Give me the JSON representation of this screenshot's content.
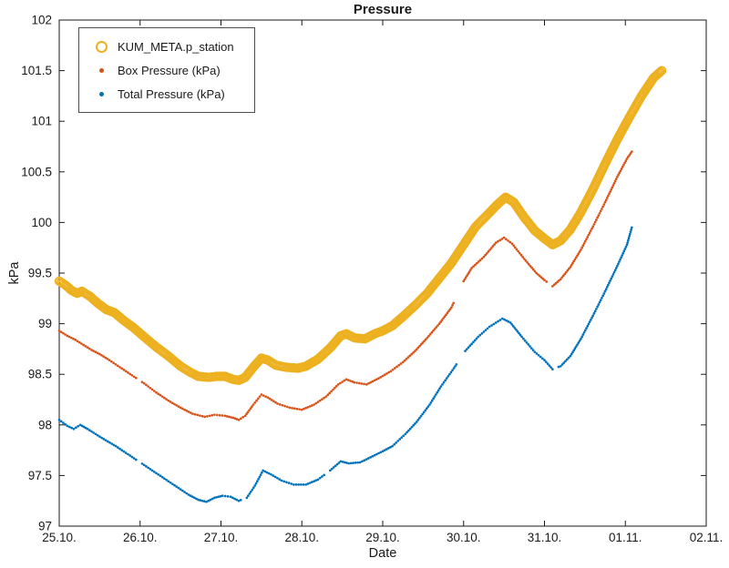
{
  "chart_data": {
    "type": "scatter",
    "title": "Pressure",
    "xlabel": "Date",
    "ylabel": "kPa",
    "grid": false,
    "legend_position": "top-left",
    "xlim": [
      0,
      8
    ],
    "ylim": [
      97,
      102
    ],
    "x_unit": "days since 25.10.",
    "x_ticks": [
      {
        "v": 0,
        "label": "25.10."
      },
      {
        "v": 1,
        "label": "26.10."
      },
      {
        "v": 2,
        "label": "27.10."
      },
      {
        "v": 3,
        "label": "28.10."
      },
      {
        "v": 4,
        "label": "29.10."
      },
      {
        "v": 5,
        "label": "30.10."
      },
      {
        "v": 6,
        "label": "31.10."
      },
      {
        "v": 7,
        "label": "01.11."
      },
      {
        "v": 8,
        "label": "02.11."
      }
    ],
    "y_ticks": [
      {
        "v": 97,
        "label": "97"
      },
      {
        "v": 97.5,
        "label": "97.5"
      },
      {
        "v": 98,
        "label": "98"
      },
      {
        "v": 98.5,
        "label": "98.5"
      },
      {
        "v": 99,
        "label": "99"
      },
      {
        "v": 99.5,
        "label": "99.5"
      },
      {
        "v": 100,
        "label": "100"
      },
      {
        "v": 100.5,
        "label": "100.5"
      },
      {
        "v": 101,
        "label": "101"
      },
      {
        "v": 101.5,
        "label": "101.5"
      },
      {
        "v": 102,
        "label": "102"
      }
    ],
    "series": [
      {
        "name": "KUM_META.p_station",
        "color": "#EDB120",
        "marker": "open-circle",
        "gaps": [],
        "points": [
          [
            0.0,
            99.42
          ],
          [
            0.08,
            99.38
          ],
          [
            0.15,
            99.33
          ],
          [
            0.22,
            99.3
          ],
          [
            0.28,
            99.32
          ],
          [
            0.38,
            99.27
          ],
          [
            0.48,
            99.2
          ],
          [
            0.58,
            99.14
          ],
          [
            0.68,
            99.11
          ],
          [
            0.8,
            99.03
          ],
          [
            0.92,
            98.96
          ],
          [
            1.05,
            98.87
          ],
          [
            1.2,
            98.77
          ],
          [
            1.35,
            98.68
          ],
          [
            1.5,
            98.58
          ],
          [
            1.62,
            98.52
          ],
          [
            1.72,
            98.48
          ],
          [
            1.85,
            98.47
          ],
          [
            1.95,
            98.48
          ],
          [
            2.05,
            98.48
          ],
          [
            2.15,
            98.45
          ],
          [
            2.22,
            98.44
          ],
          [
            2.3,
            98.47
          ],
          [
            2.4,
            98.57
          ],
          [
            2.5,
            98.66
          ],
          [
            2.58,
            98.64
          ],
          [
            2.68,
            98.59
          ],
          [
            2.8,
            98.57
          ],
          [
            2.95,
            98.56
          ],
          [
            3.05,
            98.58
          ],
          [
            3.2,
            98.65
          ],
          [
            3.35,
            98.76
          ],
          [
            3.48,
            98.88
          ],
          [
            3.55,
            98.9
          ],
          [
            3.65,
            98.86
          ],
          [
            3.78,
            98.85
          ],
          [
            3.9,
            98.9
          ],
          [
            4.0,
            98.93
          ],
          [
            4.12,
            98.98
          ],
          [
            4.25,
            99.07
          ],
          [
            4.4,
            99.18
          ],
          [
            4.55,
            99.3
          ],
          [
            4.7,
            99.45
          ],
          [
            4.85,
            99.6
          ],
          [
            5.0,
            99.78
          ],
          [
            5.15,
            99.96
          ],
          [
            5.3,
            100.08
          ],
          [
            5.42,
            100.18
          ],
          [
            5.52,
            100.25
          ],
          [
            5.62,
            100.2
          ],
          [
            5.75,
            100.05
          ],
          [
            5.88,
            99.92
          ],
          [
            6.0,
            99.84
          ],
          [
            6.1,
            99.78
          ],
          [
            6.2,
            99.82
          ],
          [
            6.32,
            99.93
          ],
          [
            6.45,
            100.1
          ],
          [
            6.6,
            100.33
          ],
          [
            6.75,
            100.58
          ],
          [
            6.9,
            100.82
          ],
          [
            7.05,
            101.04
          ],
          [
            7.2,
            101.25
          ],
          [
            7.35,
            101.43
          ],
          [
            7.45,
            101.5
          ]
        ]
      },
      {
        "name": "Box Pressure (kPa)",
        "color": "#D95319",
        "marker": "dot",
        "gaps": [
          [
            0.96,
            1.02
          ],
          [
            4.88,
            5.0
          ],
          [
            6.03,
            6.08
          ]
        ],
        "points": [
          [
            0.0,
            98.93
          ],
          [
            0.1,
            98.88
          ],
          [
            0.2,
            98.84
          ],
          [
            0.3,
            98.79
          ],
          [
            0.4,
            98.74
          ],
          [
            0.5,
            98.7
          ],
          [
            0.62,
            98.64
          ],
          [
            0.75,
            98.57
          ],
          [
            0.9,
            98.49
          ],
          [
            1.05,
            98.41
          ],
          [
            1.2,
            98.32
          ],
          [
            1.35,
            98.24
          ],
          [
            1.5,
            98.17
          ],
          [
            1.65,
            98.11
          ],
          [
            1.8,
            98.08
          ],
          [
            1.92,
            98.1
          ],
          [
            2.05,
            98.09
          ],
          [
            2.15,
            98.07
          ],
          [
            2.22,
            98.05
          ],
          [
            2.3,
            98.09
          ],
          [
            2.4,
            98.2
          ],
          [
            2.5,
            98.3
          ],
          [
            2.58,
            98.27
          ],
          [
            2.7,
            98.21
          ],
          [
            2.85,
            98.17
          ],
          [
            3.0,
            98.15
          ],
          [
            3.15,
            98.2
          ],
          [
            3.3,
            98.28
          ],
          [
            3.45,
            98.4
          ],
          [
            3.55,
            98.45
          ],
          [
            3.65,
            98.42
          ],
          [
            3.8,
            98.4
          ],
          [
            3.95,
            98.46
          ],
          [
            4.1,
            98.53
          ],
          [
            4.25,
            98.62
          ],
          [
            4.4,
            98.73
          ],
          [
            4.55,
            98.86
          ],
          [
            4.7,
            99.0
          ],
          [
            4.85,
            99.16
          ],
          [
            5.0,
            99.42
          ],
          [
            5.1,
            99.55
          ],
          [
            5.25,
            99.66
          ],
          [
            5.4,
            99.8
          ],
          [
            5.5,
            99.85
          ],
          [
            5.6,
            99.79
          ],
          [
            5.75,
            99.64
          ],
          [
            5.9,
            99.5
          ],
          [
            6.0,
            99.43
          ],
          [
            6.1,
            99.37
          ],
          [
            6.2,
            99.44
          ],
          [
            6.32,
            99.56
          ],
          [
            6.45,
            99.73
          ],
          [
            6.6,
            99.96
          ],
          [
            6.75,
            100.2
          ],
          [
            6.9,
            100.45
          ],
          [
            7.02,
            100.63
          ],
          [
            7.08,
            100.7
          ]
        ]
      },
      {
        "name": "Total Pressure (kPa)",
        "color": "#0072BD",
        "marker": "dot",
        "gaps": [
          [
            0.96,
            1.02
          ],
          [
            2.26,
            2.31
          ],
          [
            3.28,
            3.33
          ],
          [
            4.92,
            5.01
          ],
          [
            6.12,
            6.17
          ]
        ],
        "points": [
          [
            0.0,
            98.05
          ],
          [
            0.1,
            97.99
          ],
          [
            0.18,
            97.96
          ],
          [
            0.26,
            98.0
          ],
          [
            0.35,
            97.96
          ],
          [
            0.45,
            97.91
          ],
          [
            0.55,
            97.86
          ],
          [
            0.7,
            97.79
          ],
          [
            0.85,
            97.71
          ],
          [
            1.0,
            97.63
          ],
          [
            1.15,
            97.55
          ],
          [
            1.3,
            97.47
          ],
          [
            1.45,
            97.39
          ],
          [
            1.6,
            97.31
          ],
          [
            1.72,
            97.26
          ],
          [
            1.82,
            97.24
          ],
          [
            1.92,
            97.28
          ],
          [
            2.02,
            97.3
          ],
          [
            2.12,
            97.29
          ],
          [
            2.22,
            97.25
          ],
          [
            2.32,
            97.28
          ],
          [
            2.42,
            97.4
          ],
          [
            2.52,
            97.55
          ],
          [
            2.62,
            97.51
          ],
          [
            2.75,
            97.45
          ],
          [
            2.9,
            97.41
          ],
          [
            3.05,
            97.41
          ],
          [
            3.2,
            97.46
          ],
          [
            3.35,
            97.55
          ],
          [
            3.48,
            97.64
          ],
          [
            3.58,
            97.62
          ],
          [
            3.72,
            97.63
          ],
          [
            3.85,
            97.68
          ],
          [
            4.0,
            97.74
          ],
          [
            4.12,
            97.79
          ],
          [
            4.28,
            97.91
          ],
          [
            4.42,
            98.03
          ],
          [
            4.58,
            98.2
          ],
          [
            4.72,
            98.38
          ],
          [
            4.88,
            98.56
          ],
          [
            5.02,
            98.73
          ],
          [
            5.18,
            98.87
          ],
          [
            5.32,
            98.97
          ],
          [
            5.48,
            99.05
          ],
          [
            5.58,
            99.01
          ],
          [
            5.72,
            98.87
          ],
          [
            5.88,
            98.72
          ],
          [
            6.0,
            98.64
          ],
          [
            6.1,
            98.55
          ],
          [
            6.2,
            98.58
          ],
          [
            6.32,
            98.68
          ],
          [
            6.45,
            98.85
          ],
          [
            6.6,
            99.08
          ],
          [
            6.75,
            99.32
          ],
          [
            6.9,
            99.57
          ],
          [
            7.02,
            99.78
          ],
          [
            7.08,
            99.95
          ]
        ]
      }
    ],
    "axis_color": "#1a1a1a"
  }
}
